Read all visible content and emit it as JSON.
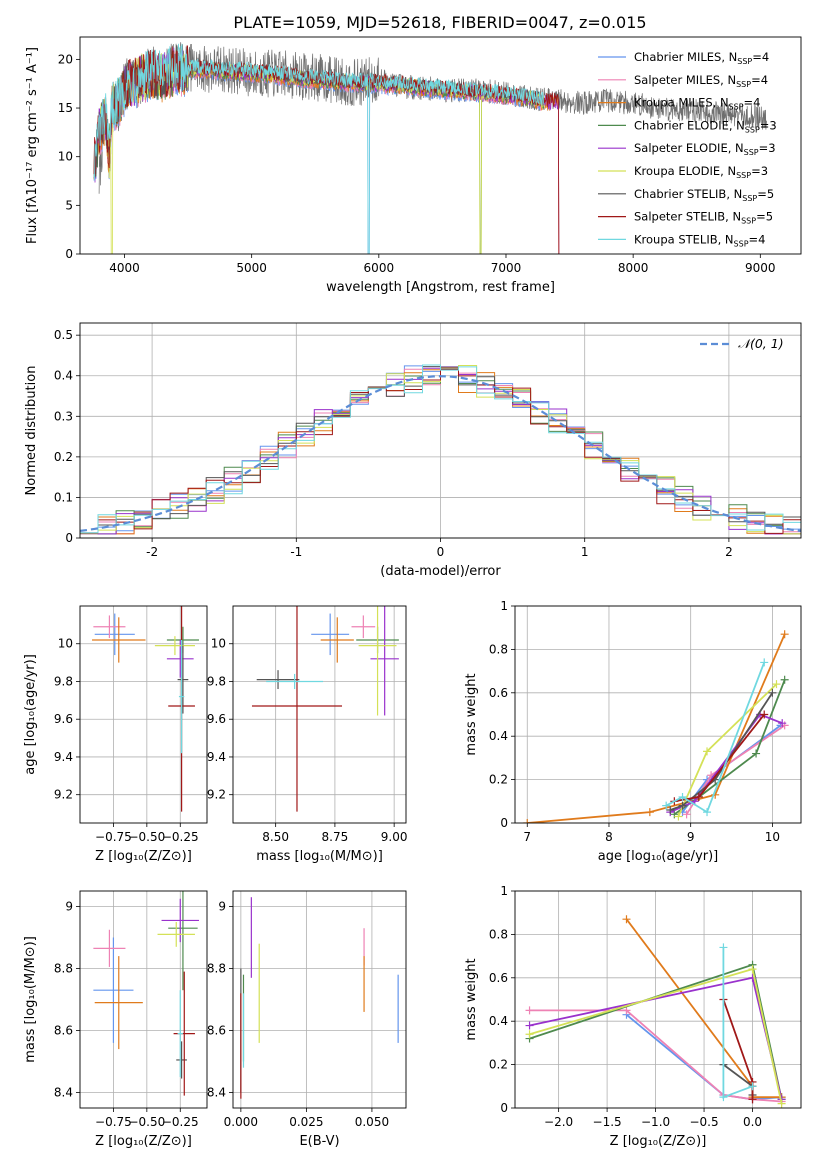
{
  "figure_title": "PLATE=1059, MJD=52618, FIBERID=0047, z=0.015",
  "models": [
    {
      "name": "Chabrier MILES, N_SSP=4",
      "base": "Chabrier MILES, N",
      "sub": "SSP",
      "tail": "=4",
      "color": "#6495ed"
    },
    {
      "name": "Salpeter MILES, N_SSP=4",
      "base": "Salpeter MILES, N",
      "sub": "SSP",
      "tail": "=4",
      "color": "#ee82b4"
    },
    {
      "name": "Kroupa MILES, N_SSP=4",
      "base": "Kroupa MILES, N",
      "sub": "SSP",
      "tail": "=4",
      "color": "#e07b1c"
    },
    {
      "name": "Chabrier ELODIE, N_SSP=3",
      "base": "Chabrier ELODIE, N",
      "sub": "SSP",
      "tail": "=3",
      "color": "#4e8a4e"
    },
    {
      "name": "Salpeter ELODIE, N_SSP=3",
      "base": "Salpeter ELODIE, N",
      "sub": "SSP",
      "tail": "=3",
      "color": "#9932cc"
    },
    {
      "name": "Kroupa ELODIE, N_SSP=3",
      "base": "Kroupa ELODIE, N",
      "sub": "SSP",
      "tail": "=3",
      "color": "#d4e157"
    },
    {
      "name": "Chabrier STELIB, N_SSP=5",
      "base": "Chabrier STELIB, N",
      "sub": "SSP",
      "tail": "=5",
      "color": "#555555"
    },
    {
      "name": "Salpeter STELIB, N_SSP=5",
      "base": "Salpeter STELIB, N",
      "sub": "SSP",
      "tail": "=5",
      "color": "#a01818"
    },
    {
      "name": "Kroupa STELIB, N_SSP=4",
      "base": "Kroupa STELIB, N",
      "sub": "SSP",
      "tail": "=4",
      "color": "#70d8e0"
    }
  ],
  "chart_data": [
    {
      "id": "spectrum",
      "type": "line",
      "xlabel": "wavelength [Angstrom, rest frame]",
      "ylabel": "Flux [fλ10⁻¹⁷ erg cm⁻² s⁻¹ A⁻¹]",
      "xlim": [
        3650,
        9320
      ],
      "ylim": [
        0,
        22.3
      ],
      "xticks": [
        4000,
        5000,
        6000,
        7000,
        8000,
        9000
      ],
      "yticks": [
        0,
        5,
        10,
        15,
        20
      ],
      "grid": false,
      "legend": "upper right",
      "data_x": [
        3800,
        3850,
        3880,
        3900,
        3950,
        4000,
        4100,
        4200,
        4300,
        4400,
        4600,
        4800,
        5000,
        5200,
        5400,
        5600,
        5800,
        6000,
        6200,
        6400,
        6600,
        6800,
        7000,
        7200,
        7400,
        7600,
        7800,
        8000,
        8200,
        8400,
        8600,
        8800,
        9000,
        9050
      ],
      "data_y": [
        7.5,
        15.0,
        9.0,
        16.0,
        14.0,
        18.0,
        17.0,
        19.0,
        18.5,
        19.5,
        19.0,
        19.0,
        18.5,
        18.5,
        18.3,
        18.0,
        17.5,
        18.0,
        17.2,
        17.0,
        16.8,
        16.8,
        16.5,
        16.0,
        15.8,
        15.5,
        15.8,
        15.5,
        15.0,
        14.8,
        14.5,
        14.3,
        14.0,
        14.0
      ],
      "model_x": [
        3760,
        3800,
        3850,
        3880,
        3900,
        3950,
        4000,
        4100,
        4200,
        4300,
        4400,
        4600,
        4800,
        5000,
        5200,
        5400,
        5600,
        5800,
        6000,
        6200,
        6400,
        6600,
        6800,
        7000,
        7200,
        7300
      ],
      "model_y": [
        9.0,
        12.5,
        14.0,
        10.0,
        15.0,
        15.5,
        17.0,
        17.8,
        18.5,
        18.2,
        18.8,
        19.0,
        18.8,
        18.6,
        18.4,
        18.0,
        17.8,
        17.6,
        17.5,
        17.3,
        17.0,
        16.8,
        16.6,
        16.3,
        16.0,
        15.6
      ]
    },
    {
      "id": "residuals",
      "type": "line",
      "xlabel": "(data-model)/error",
      "ylabel": "Normed distribution",
      "xlim": [
        -2.5,
        2.5
      ],
      "ylim": [
        0,
        0.53
      ],
      "xticks": [
        -2,
        -1,
        0,
        1,
        2
      ],
      "yticks": [
        0,
        0.1,
        0.2,
        0.3,
        0.4,
        0.5
      ],
      "grid": true,
      "legend": "upper right",
      "reference_label": "𝒩(0, 1)",
      "bin_width": 0.125
    },
    {
      "id": "age_vs_Z",
      "type": "scatter",
      "xlabel": "Z [log₁₀(Z/Z⊙)]",
      "ylabel": "age  [log₁₀(age/yr)]",
      "xlim": [
        -1.0,
        -0.05
      ],
      "ylim": [
        9.05,
        10.2
      ],
      "xticks": [
        -0.75,
        -0.5,
        -0.25
      ],
      "xticklabels": [
        "−0.75",
        "−0.50",
        "−0.25"
      ],
      "yticks": [
        9.2,
        9.4,
        9.6,
        9.8,
        10.0
      ],
      "grid": true,
      "points": [
        {
          "m": 0,
          "x": -0.74,
          "y": 10.05,
          "dx": 0.15,
          "dy": 0.11
        },
        {
          "m": 1,
          "x": -0.78,
          "y": 10.09,
          "dx": 0.12,
          "dy": 0.06
        },
        {
          "m": 2,
          "x": -0.71,
          "y": 10.02,
          "dx": 0.2,
          "dy": 0.12
        },
        {
          "m": 3,
          "x": -0.23,
          "y": 10.02,
          "dx": 0.12,
          "dy": 0.07
        },
        {
          "m": 4,
          "x": -0.25,
          "y": 9.92,
          "dx": 0.1,
          "dy": 0.1
        },
        {
          "m": 5,
          "x": -0.29,
          "y": 9.99,
          "dx": 0.15,
          "dy": 0.05
        },
        {
          "m": 6,
          "x": -0.23,
          "y": 9.81,
          "dx": 0.04,
          "dy": 0.18
        },
        {
          "m": 7,
          "x": -0.24,
          "y": 9.67,
          "dx": 0.1,
          "dy": 0.56
        },
        {
          "m": 8,
          "x": -0.24,
          "y": 9.72,
          "dx": 0.02,
          "dy": 0.3
        }
      ]
    },
    {
      "id": "age_vs_mass",
      "type": "scatter",
      "xlabel": "mass [log₁₀(M/M⊙)]",
      "ylabel": "",
      "xlim": [
        8.32,
        9.05
      ],
      "ylim": [
        9.05,
        10.2
      ],
      "xticks": [
        8.5,
        8.75,
        9.0
      ],
      "xticklabels": [
        "8.50",
        "8.75",
        "9.00"
      ],
      "yticks": [
        9.2,
        9.4,
        9.6,
        9.8,
        10.0
      ],
      "grid": true,
      "points": [
        {
          "m": 0,
          "x": 8.73,
          "y": 10.05,
          "dx": 0.08,
          "dy": 0.11
        },
        {
          "m": 1,
          "x": 8.87,
          "y": 10.09,
          "dx": 0.05,
          "dy": 0.06
        },
        {
          "m": 2,
          "x": 8.76,
          "y": 10.02,
          "dx": 0.07,
          "dy": 0.12
        },
        {
          "m": 3,
          "x": 8.93,
          "y": 10.02,
          "dx": 0.09,
          "dy": 0.07
        },
        {
          "m": 4,
          "x": 8.96,
          "y": 9.92,
          "dx": 0.06,
          "dy": 0.3
        },
        {
          "m": 5,
          "x": 8.93,
          "y": 9.99,
          "dx": 0.08,
          "dy": 0.37
        },
        {
          "m": 6,
          "x": 8.51,
          "y": 9.81,
          "dx": 0.09,
          "dy": 0.05
        },
        {
          "m": 7,
          "x": 8.59,
          "y": 9.67,
          "dx": 0.19,
          "dy": 0.56
        },
        {
          "m": 8,
          "x": 8.58,
          "y": 9.8,
          "dx": 0.12,
          "dy": 0.04
        }
      ]
    },
    {
      "id": "weight_vs_age",
      "type": "line",
      "xlabel": "age  [log₁₀(age/yr)]",
      "ylabel": "mass weight",
      "xlim": [
        6.85,
        10.35
      ],
      "ylim": [
        0,
        1.0
      ],
      "xticks": [
        7,
        8,
        9,
        10
      ],
      "yticks": [
        0,
        0.2,
        0.4,
        0.6,
        0.8,
        1.0
      ],
      "grid": true,
      "series": [
        {
          "m": 0,
          "x": [
            8.9,
            9.2,
            10.1
          ],
          "y": [
            0.05,
            0.2,
            0.45
          ]
        },
        {
          "m": 1,
          "x": [
            8.95,
            9.25,
            10.15
          ],
          "y": [
            0.04,
            0.22,
            0.45
          ]
        },
        {
          "m": 2,
          "x": [
            7.0,
            8.5,
            9.3,
            10.15
          ],
          "y": [
            0.0,
            0.05,
            0.13,
            0.87
          ]
        },
        {
          "m": 3,
          "x": [
            8.8,
            9.1,
            9.8,
            10.15
          ],
          "y": [
            0.04,
            0.12,
            0.32,
            0.66
          ]
        },
        {
          "m": 4,
          "x": [
            8.75,
            9.05,
            9.85,
            10.12
          ],
          "y": [
            0.05,
            0.1,
            0.5,
            0.46
          ]
        },
        {
          "m": 5,
          "x": [
            8.85,
            9.2,
            10.05
          ],
          "y": [
            0.03,
            0.33,
            0.64
          ]
        },
        {
          "m": 6,
          "x": [
            8.75,
            8.9,
            9.3,
            10.0
          ],
          "y": [
            0.06,
            0.08,
            0.2,
            0.6
          ]
        },
        {
          "m": 7,
          "x": [
            8.8,
            9.1,
            9.9
          ],
          "y": [
            0.1,
            0.12,
            0.5
          ]
        },
        {
          "m": 8,
          "x": [
            8.7,
            8.9,
            9.2,
            9.9
          ],
          "y": [
            0.08,
            0.12,
            0.05,
            0.74
          ]
        }
      ]
    },
    {
      "id": "mass_vs_Z",
      "type": "scatter",
      "xlabel": "Z [log₁₀(Z/Z⊙)]",
      "ylabel": "mass [log₁₀(M/M⊙)]",
      "xlim": [
        -1.0,
        -0.05
      ],
      "ylim": [
        8.35,
        9.05
      ],
      "xticks": [
        -0.75,
        -0.5,
        -0.25
      ],
      "xticklabels": [
        "−0.75",
        "−0.50",
        "−0.25"
      ],
      "yticks": [
        8.4,
        8.6,
        8.8,
        9.0
      ],
      "grid": true,
      "points": [
        {
          "m": 0,
          "x": -0.75,
          "y": 8.73,
          "dx": 0.15,
          "dy": 0.17
        },
        {
          "m": 1,
          "x": -0.78,
          "y": 8.865,
          "dx": 0.12,
          "dy": 0.06
        },
        {
          "m": 2,
          "x": -0.71,
          "y": 8.69,
          "dx": 0.18,
          "dy": 0.15
        },
        {
          "m": 3,
          "x": -0.23,
          "y": 8.93,
          "dx": 0.11,
          "dy": 0.2
        },
        {
          "m": 4,
          "x": -0.25,
          "y": 8.955,
          "dx": 0.14,
          "dy": 0.07
        },
        {
          "m": 5,
          "x": -0.28,
          "y": 8.91,
          "dx": 0.14,
          "dy": 0.04
        },
        {
          "m": 6,
          "x": -0.24,
          "y": 8.505,
          "dx": 0.04,
          "dy": 0.06
        },
        {
          "m": 7,
          "x": -0.22,
          "y": 8.59,
          "dx": 0.08,
          "dy": 0.2
        },
        {
          "m": 8,
          "x": -0.25,
          "y": 8.59,
          "dx": 0.02,
          "dy": 0.14
        }
      ]
    },
    {
      "id": "mass_vs_EBV",
      "type": "scatter",
      "xlabel": "E(B-V)",
      "ylabel": "",
      "xlim": [
        -0.003,
        0.063
      ],
      "ylim": [
        8.35,
        9.05
      ],
      "xticks": [
        0.0,
        0.025,
        0.05
      ],
      "xticklabels": [
        "0.000",
        "0.025",
        "0.050"
      ],
      "yticks": [
        8.4,
        8.6,
        8.8,
        9.0
      ],
      "grid": true,
      "points": [
        {
          "m": 0,
          "x": 0.06,
          "y": 8.67,
          "dx": 0,
          "dy": 0.11
        },
        {
          "m": 1,
          "x": 0.047,
          "y": 8.87,
          "dx": 0,
          "dy": 0.06
        },
        {
          "m": 2,
          "x": 0.047,
          "y": 8.75,
          "dx": 0,
          "dy": 0.09
        },
        {
          "m": 3,
          "x": 0.001,
          "y": 8.64,
          "dx": 0,
          "dy": 0.14
        },
        {
          "m": 4,
          "x": 0.004,
          "y": 8.9,
          "dx": 0,
          "dy": 0.13
        },
        {
          "m": 5,
          "x": 0.007,
          "y": 8.72,
          "dx": 0,
          "dy": 0.16
        },
        {
          "m": 6,
          "x": 0.0,
          "y": 8.6,
          "dx": 0,
          "dy": 0.2
        },
        {
          "m": 7,
          "x": 0.0,
          "y": 8.55,
          "dx": 0,
          "dy": 0.17
        },
        {
          "m": 8,
          "x": 0.001,
          "y": 8.6,
          "dx": 0,
          "dy": 0.12
        }
      ]
    },
    {
      "id": "weight_vs_Z",
      "type": "line",
      "xlabel": "Z [log₁₀(Z/Z⊙)]",
      "ylabel": "mass weight",
      "xlim": [
        -2.45,
        0.5
      ],
      "ylim": [
        0,
        1.0
      ],
      "xticks": [
        -2.0,
        -1.5,
        -1.0,
        -0.5,
        0.0
      ],
      "xticklabels": [
        "−2.0",
        "−1.5",
        "−1.0",
        "−0.5",
        "0.0"
      ],
      "yticks": [
        0,
        0.2,
        0.4,
        0.6,
        0.8,
        1.0
      ],
      "grid": true,
      "series": [
        {
          "m": 0,
          "x": [
            -1.3,
            -0.3,
            0.0,
            0.3
          ],
          "y": [
            0.43,
            0.06,
            0.04,
            0.05
          ]
        },
        {
          "m": 1,
          "x": [
            -2.3,
            -1.3,
            -0.3,
            0.0,
            0.3
          ],
          "y": [
            0.45,
            0.45,
            0.06,
            0.04,
            0.03
          ]
        },
        {
          "m": 2,
          "x": [
            -1.3,
            0.0,
            0.0,
            0.3
          ],
          "y": [
            0.87,
            0.1,
            0.05,
            0.05
          ]
        },
        {
          "m": 3,
          "x": [
            -2.3,
            0.0,
            0.3
          ],
          "y": [
            0.32,
            0.66,
            0.04
          ]
        },
        {
          "m": 4,
          "x": [
            -2.3,
            0.0,
            0.3
          ],
          "y": [
            0.38,
            0.6,
            0.04
          ]
        },
        {
          "m": 5,
          "x": [
            -2.3,
            0.0,
            0.3
          ],
          "y": [
            0.34,
            0.64,
            0.02
          ]
        },
        {
          "m": 6,
          "x": [
            -0.3,
            0.0,
            0.0
          ],
          "y": [
            0.2,
            0.1,
            0.06
          ]
        },
        {
          "m": 7,
          "x": [
            -0.3,
            0.0,
            0.0
          ],
          "y": [
            0.5,
            0.12,
            0.04
          ]
        },
        {
          "m": 8,
          "x": [
            -0.3,
            -0.3,
            0.0
          ],
          "y": [
            0.74,
            0.05,
            0.1
          ]
        }
      ]
    }
  ]
}
